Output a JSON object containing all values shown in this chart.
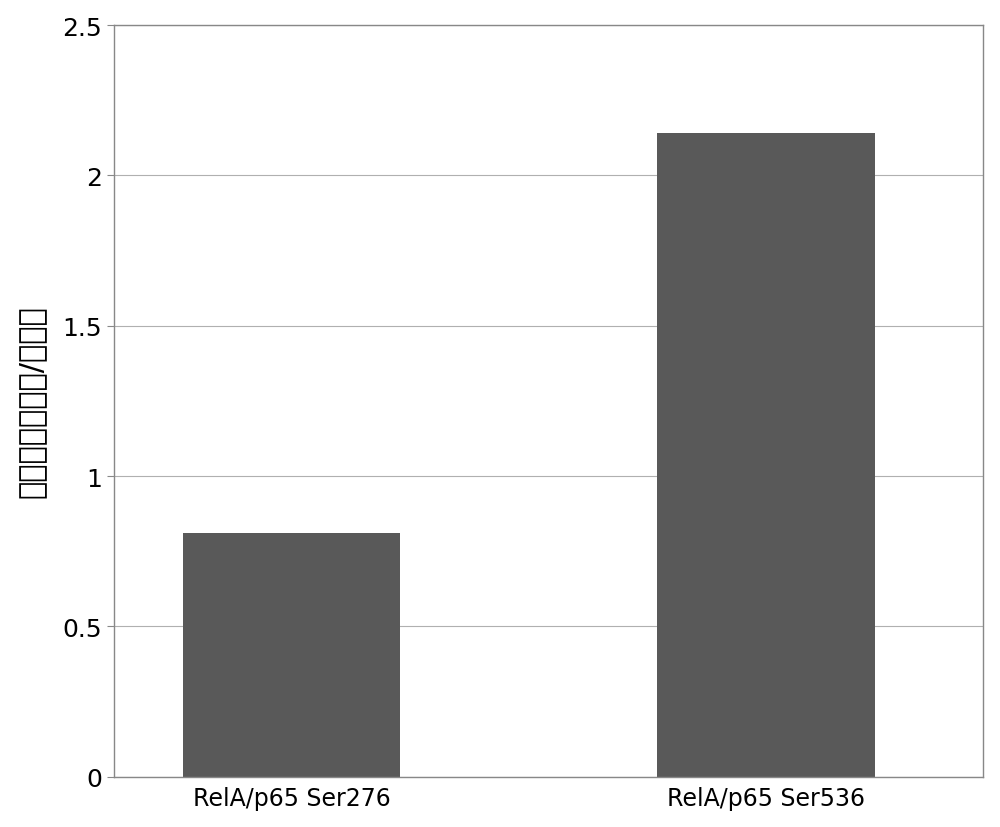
{
  "categories": [
    "RelA/p65 Ser276",
    "RelA/p65 Ser536"
  ],
  "values": [
    0.81,
    2.14
  ],
  "bar_color": "#595959",
  "bar_width": 0.55,
  "ylabel": "相对水平（肿瘀/正常）",
  "ylim": [
    0,
    2.5
  ],
  "yticks": [
    0,
    0.5,
    1,
    1.5,
    2,
    2.5
  ],
  "background_color": "#ffffff",
  "grid_color": "#b0b0b0",
  "ylabel_fontsize": 22,
  "tick_fontsize": 18,
  "xtick_fontsize": 17,
  "bar_positions": [
    1,
    2.2
  ]
}
